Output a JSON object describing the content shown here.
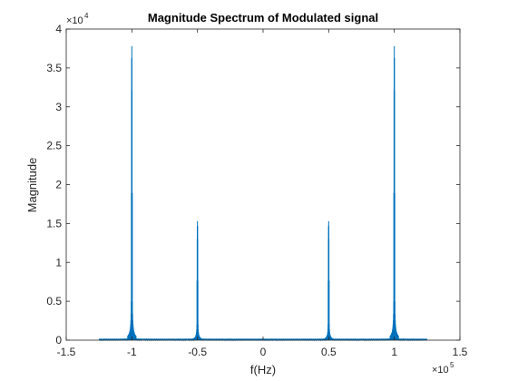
{
  "chart_data": {
    "type": "line",
    "title": "Magnitude Spectrum of Modulated signal",
    "xlabel": "f(Hz)",
    "ylabel": "Magnitude",
    "xlim": [
      -1.5,
      1.5
    ],
    "ylim": [
      0,
      4
    ],
    "x_scale_exponent": {
      "base": "×10",
      "power": "5"
    },
    "y_scale_exponent": {
      "base": "×10",
      "power": "4"
    },
    "x_ticks": [
      "-1.5",
      "-1",
      "-0.5",
      "0",
      "0.5",
      "1",
      "1.5"
    ],
    "y_ticks": [
      "0",
      "0.5",
      "1",
      "1.5",
      "2",
      "2.5",
      "3",
      "3.5",
      "4"
    ],
    "grid": false,
    "box": true,
    "line_color": "#0072BD",
    "peaks": [
      {
        "x": -1.0,
        "y": 3.78
      },
      {
        "x": -0.5,
        "y": 1.53
      },
      {
        "x": 0.5,
        "y": 1.53
      },
      {
        "x": 1.0,
        "y": 3.78
      }
    ]
  }
}
